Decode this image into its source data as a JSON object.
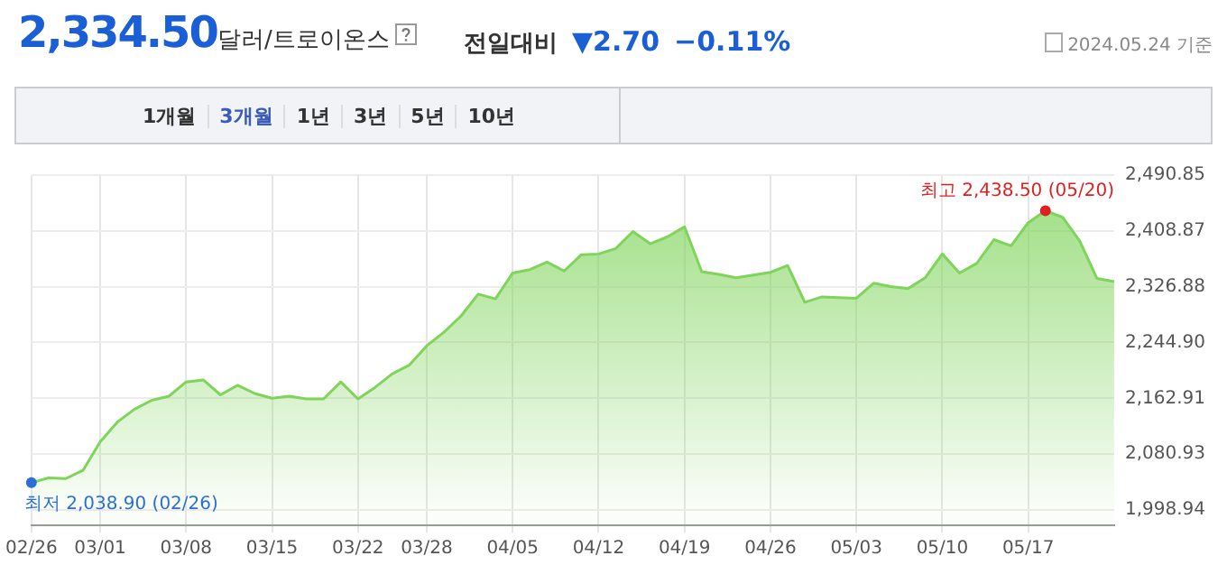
{
  "chart_data": {
    "type": "area",
    "title": "2,334.50",
    "subtitle": "달러/트로이온스",
    "annotations": [
      "전일대비",
      "▼2.70",
      "−0.11%",
      "2024.05.24 기준",
      "1개월",
      "3개월",
      "1년",
      "3년",
      "5년",
      "10년",
      {
        "text": "최저 2,038.90 (02/26)",
        "x": "02/26",
        "y": 2038.9
      },
      "최고 2,438.50 (05/20)"
    ],
    "categories": [
      "02/26",
      null,
      null,
      null,
      "03/01",
      null,
      null,
      null,
      null,
      "03/08",
      null,
      null,
      null,
      null,
      "03/15",
      null,
      null,
      null,
      null,
      "03/22",
      null,
      null,
      null,
      "03/28",
      null,
      null,
      null,
      null,
      "04/05",
      null,
      null,
      null,
      null,
      "04/12",
      null,
      null,
      null,
      null,
      "04/19",
      null,
      null,
      null,
      null,
      "04/26",
      null,
      null,
      null,
      null,
      "05/03",
      null,
      null,
      null,
      null,
      "05/10",
      null,
      null,
      null,
      null,
      "05/17",
      null,
      null,
      null,
      null,
      null
    ],
    "series": [
      {
        "color": "#7fd45a",
        "values": [
          2038.9,
          2046,
          2045,
          2057,
          2099,
          2128,
          2147,
          2160,
          2166,
          2187,
          2190,
          2168,
          2182,
          2170,
          2163,
          2166,
          2162,
          2162,
          2187,
          2162,
          2179,
          2199,
          2212,
          2240,
          2260,
          2284,
          2316,
          2309,
          2347,
          2352,
          2363,
          2350,
          2374,
          2375,
          2383,
          2408,
          2390,
          2400,
          2415,
          2349,
          2345,
          2340,
          2344,
          2348,
          2358,
          2304,
          2312,
          2311,
          2310,
          2332,
          2327,
          2324,
          2340,
          2375,
          2347,
          2361,
          2396,
          2387,
          2421,
          2438.5,
          2429,
          2394,
          2339,
          2334.5
        ]
      }
    ],
    "ylim": [
      1976.4,
      2490.85
    ],
    "yticks": [
      {
        "value": 1998.94,
        "label": "1,998.94"
      },
      {
        "value": 2080.93,
        "label": "2,080.93"
      },
      {
        "value": 2162.91,
        "label": "2,162.91"
      },
      {
        "value": 2244.9,
        "label": "2,244.90"
      },
      {
        "value": 2326.88,
        "label": "2,326.88"
      },
      {
        "value": 2408.87,
        "label": "2,408.87"
      },
      {
        "value": 2490.85,
        "label": "2,490.85"
      }
    ],
    "grid": true,
    "legend": false,
    "marker": "none",
    "line_style": "solid"
  }
}
